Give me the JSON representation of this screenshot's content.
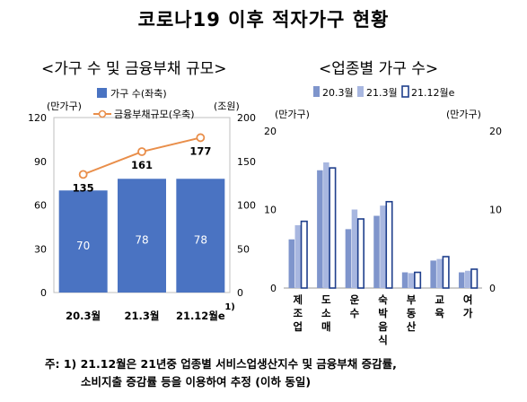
{
  "title": "코로나19 이후 적자가구 현황",
  "footnote": {
    "line1": "주: 1) 21.12월은 21년중 업종별 서비스업생산지수 및 금융부채 증감률,",
    "line2": "소비지출 증감률 등을 이용하여 추정 (이하 동일)"
  },
  "colors": {
    "bar_main": "#4a73c2",
    "line": "#e98e4a",
    "bar_203": "#7f95cc",
    "bar_213": "#a8b7e0",
    "bar_2112_fill": "#ffffff",
    "bar_2112_stroke": "#1f3f8c"
  },
  "chart_data": [
    {
      "type": "bar",
      "panel_title": "<가구 수 및 금융부채 규모>",
      "categories": [
        "20.3월",
        "21.3월",
        "21.12월e"
      ],
      "category_superscript": {
        "index": 2,
        "text": "1)"
      },
      "left_unit": "(만가구)",
      "right_unit": "(조원)",
      "ylim_left": [
        0,
        120
      ],
      "yticks_left": [
        0,
        30,
        60,
        90,
        120
      ],
      "ylim_right": [
        0,
        200
      ],
      "yticks_right": [
        0,
        50,
        100,
        150,
        200
      ],
      "series": [
        {
          "name": "가구 수(좌축)",
          "kind": "bar",
          "axis": "left",
          "values": [
            70,
            78,
            78
          ],
          "labels": [
            "70",
            "78",
            "78"
          ]
        },
        {
          "name": "금융부채규모(우축)",
          "kind": "line",
          "axis": "right",
          "values": [
            135,
            161,
            177
          ],
          "labels": [
            "135",
            "161",
            "177"
          ]
        }
      ],
      "legend": "top-left",
      "grid": false
    },
    {
      "type": "bar",
      "panel_title": "<업종별 가구 수>",
      "categories": [
        "제조업",
        "도소매",
        "운수",
        "숙박음식",
        "부동산",
        "교육",
        "여가"
      ],
      "left_unit": "(만가구)",
      "right_unit": "(만가구)",
      "ylim": [
        0,
        20
      ],
      "yticks": [
        0,
        10,
        20
      ],
      "series": [
        {
          "name": "20.3월",
          "values": [
            6.2,
            15.0,
            7.5,
            9.2,
            2.0,
            3.5,
            2.0
          ]
        },
        {
          "name": "21.3월",
          "values": [
            8.0,
            16.0,
            10.0,
            10.5,
            1.9,
            3.7,
            2.2
          ]
        },
        {
          "name": "21.12월e",
          "values": [
            8.5,
            15.3,
            8.8,
            11.0,
            2.0,
            4.0,
            2.4
          ]
        }
      ],
      "legend": "top",
      "grid": false
    }
  ]
}
